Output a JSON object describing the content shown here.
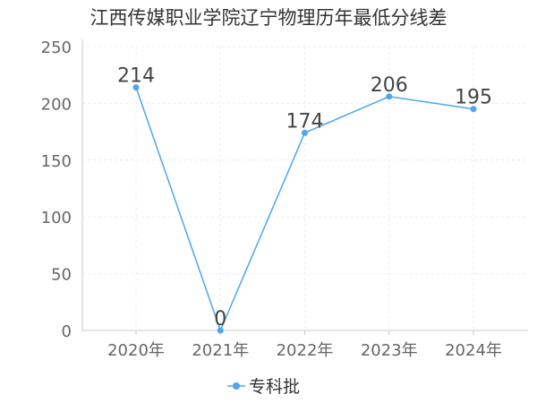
{
  "title": "江西传媒职业学院辽宁物理历年最低分线差",
  "colors": {
    "series": "#4da6ee",
    "axis": "#cccccc",
    "grid": "#eeeeee",
    "text": "#333333"
  },
  "chart_data": {
    "type": "line",
    "title": "江西传媒职业学院辽宁物理历年最低分线差",
    "categories": [
      "2020年",
      "2021年",
      "2022年",
      "2023年",
      "2024年"
    ],
    "series": [
      {
        "name": "专科批",
        "values": [
          214,
          0,
          174,
          206,
          195
        ]
      }
    ],
    "ylim": [
      0,
      250
    ],
    "yticks": [
      0,
      50,
      100,
      150,
      200,
      250
    ],
    "grid": true,
    "legend": "bottom-center",
    "xlabel": "",
    "ylabel": ""
  }
}
